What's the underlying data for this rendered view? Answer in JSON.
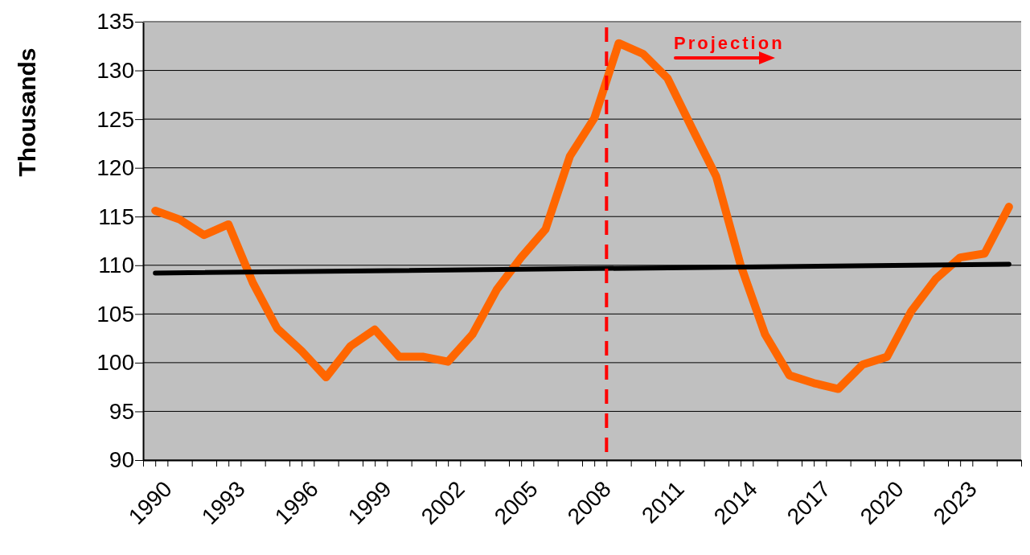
{
  "chart_data": {
    "type": "line",
    "ylabel": "Thousands",
    "x": [
      1990,
      1991,
      1992,
      1993,
      1994,
      1995,
      1996,
      1997,
      1998,
      1999,
      2000,
      2001,
      2002,
      2003,
      2004,
      2005,
      2006,
      2007,
      2008,
      2009,
      2010,
      2011,
      2012,
      2013,
      2014,
      2015,
      2016,
      2017,
      2018,
      2019,
      2020,
      2021,
      2022,
      2023,
      2024,
      2025
    ],
    "series": [
      {
        "color": "#ff6600",
        "values": [
          115.6,
          114.7,
          113.1,
          114.2,
          108.2,
          103.5,
          101.2,
          98.5,
          101.7,
          103.4,
          100.6,
          100.6,
          100.1,
          102.9,
          107.5,
          110.8,
          113.7,
          121.2,
          125.1,
          132.8,
          131.7,
          129.2,
          124.1,
          119.1,
          110,
          102.9,
          98.7,
          97.9,
          97.3,
          99.8,
          100.6,
          105.3,
          108.6,
          110.8,
          111.2,
          116
        ]
      },
      {
        "type": "line",
        "color": "#000000",
        "x": [
          1990,
          2025
        ],
        "values": [
          109.2,
          110.1
        ]
      }
    ],
    "xlim": [
      1989.5,
      2025.5
    ],
    "xticks": [
      {
        "value": 1989.5,
        "label": null
      },
      1990,
      {
        "value": 1990.5,
        "label": null
      },
      {
        "value": 1991.5,
        "label": null
      },
      {
        "value": 1992.5,
        "label": null
      },
      1993,
      {
        "value": 1993.5,
        "label": null
      },
      {
        "value": 1994.5,
        "label": null
      },
      {
        "value": 1995.5,
        "label": null
      },
      1996,
      {
        "value": 1996.5,
        "label": null
      },
      {
        "value": 1997.5,
        "label": null
      },
      {
        "value": 1998.5,
        "label": null
      },
      1999,
      {
        "value": 1999.5,
        "label": null
      },
      {
        "value": 2000.5,
        "label": null
      },
      {
        "value": 2001.5,
        "label": null
      },
      2002,
      {
        "value": 2002.5,
        "label": null
      },
      {
        "value": 2003.5,
        "label": null
      },
      {
        "value": 2004.5,
        "label": null
      },
      2005,
      {
        "value": 2005.5,
        "label": null
      },
      {
        "value": 2006.5,
        "label": null
      },
      {
        "value": 2007.5,
        "label": null
      },
      2008,
      {
        "value": 2008.5,
        "label": null
      },
      {
        "value": 2009.5,
        "label": null
      },
      {
        "value": 2010.5,
        "label": null
      },
      2011,
      {
        "value": 2011.5,
        "label": null
      },
      {
        "value": 2012.5,
        "label": null
      },
      {
        "value": 2013.5,
        "label": null
      },
      2014,
      {
        "value": 2014.5,
        "label": null
      },
      {
        "value": 2015.5,
        "label": null
      },
      {
        "value": 2016.5,
        "label": null
      },
      2017,
      {
        "value": 2017.5,
        "label": null
      },
      {
        "value": 2018.5,
        "label": null
      },
      {
        "value": 2019.5,
        "label": null
      },
      2020,
      {
        "value": 2020.5,
        "label": null
      },
      {
        "value": 2021.5,
        "label": null
      },
      {
        "value": 2022.5,
        "label": null
      },
      2023,
      {
        "value": 2023.5,
        "label": null
      },
      {
        "value": 2024.5,
        "label": null
      },
      {
        "value": 2025.5,
        "label": null
      }
    ],
    "ylim": [
      90,
      135
    ],
    "yticks": [
      90,
      95,
      100,
      105,
      110,
      115,
      120,
      125,
      130,
      135
    ],
    "grid": "y",
    "marker": "none",
    "line_style": "solid",
    "ref_lines": [
      {
        "axis": "x",
        "value": 2008.5,
        "color": "#ff0000",
        "line_style": "dashed"
      }
    ],
    "annotations": [
      "Projection"
    ]
  }
}
